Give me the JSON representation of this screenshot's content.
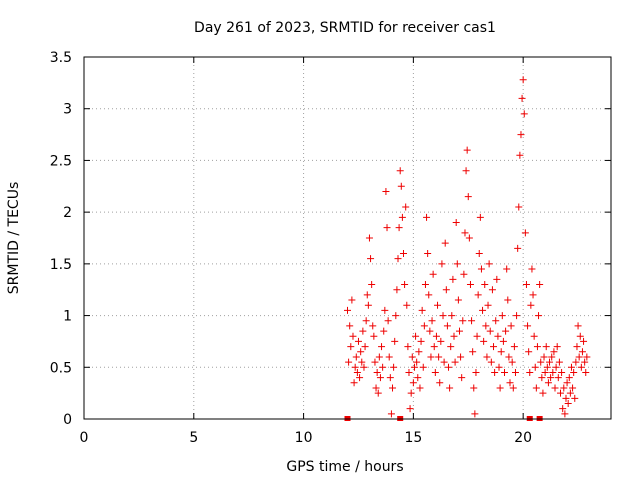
{
  "chart_data": {
    "type": "scatter",
    "title": "Day 261 of 2023, SRMTID for receiver cas1",
    "xlabel": "GPS time / hours",
    "ylabel": "SRMTID / TECUs",
    "xlim": [
      0,
      24
    ],
    "ylim": [
      0,
      3.5
    ],
    "xticks": [
      0,
      5,
      10,
      15,
      20
    ],
    "yticks": [
      0,
      0.5,
      1,
      1.5,
      2,
      2.5,
      3,
      3.5
    ],
    "xtick_labels": [
      "0",
      "5",
      "10",
      "15",
      "20"
    ],
    "ytick_labels": [
      "0",
      "0.5",
      "1",
      "1.5",
      "2",
      "2.5",
      "3",
      "3.5"
    ],
    "grid": true,
    "marker": "plus",
    "color": "#ee0000",
    "series": [
      {
        "name": "SRMTID",
        "points": [
          [
            12.0,
            1.05
          ],
          [
            12.05,
            0.55
          ],
          [
            12.1,
            0.9
          ],
          [
            12.15,
            0.7
          ],
          [
            12.2,
            1.15
          ],
          [
            12.25,
            0.8
          ],
          [
            12.3,
            0.35
          ],
          [
            12.35,
            0.5
          ],
          [
            12.4,
            0.6
          ],
          [
            12.45,
            0.45
          ],
          [
            12.5,
            0.75
          ],
          [
            12.55,
            0.4
          ],
          [
            12.6,
            0.65
          ],
          [
            12.65,
            0.55
          ],
          [
            12.7,
            0.85
          ],
          [
            12.75,
            0.5
          ],
          [
            12.8,
            0.7
          ],
          [
            12.85,
            0.95
          ],
          [
            12.9,
            1.2
          ],
          [
            12.95,
            1.1
          ],
          [
            13.0,
            1.75
          ],
          [
            13.05,
            1.55
          ],
          [
            13.1,
            1.3
          ],
          [
            13.15,
            0.9
          ],
          [
            13.2,
            0.8
          ],
          [
            13.25,
            0.55
          ],
          [
            13.3,
            0.3
          ],
          [
            13.35,
            0.45
          ],
          [
            13.4,
            0.25
          ],
          [
            13.45,
            0.6
          ],
          [
            13.5,
            0.4
          ],
          [
            13.55,
            0.7
          ],
          [
            13.6,
            0.5
          ],
          [
            13.65,
            0.85
          ],
          [
            13.7,
            1.05
          ],
          [
            13.75,
            2.2
          ],
          [
            13.8,
            1.85
          ],
          [
            13.85,
            0.95
          ],
          [
            13.9,
            0.6
          ],
          [
            13.95,
            0.4
          ],
          [
            14.0,
            0.05
          ],
          [
            14.05,
            0.3
          ],
          [
            14.1,
            0.5
          ],
          [
            14.15,
            0.75
          ],
          [
            14.2,
            1.0
          ],
          [
            14.25,
            1.25
          ],
          [
            14.3,
            1.55
          ],
          [
            14.35,
            1.85
          ],
          [
            14.4,
            2.4
          ],
          [
            14.45,
            2.25
          ],
          [
            14.5,
            1.95
          ],
          [
            14.55,
            1.6
          ],
          [
            14.6,
            1.3
          ],
          [
            14.65,
            2.05
          ],
          [
            14.7,
            1.1
          ],
          [
            14.75,
            0.7
          ],
          [
            14.8,
            0.45
          ],
          [
            14.85,
            0.1
          ],
          [
            14.9,
            0.25
          ],
          [
            14.95,
            0.6
          ],
          [
            15.0,
            0.35
          ],
          [
            15.05,
            0.5
          ],
          [
            15.1,
            0.8
          ],
          [
            15.15,
            0.55
          ],
          [
            15.2,
            0.4
          ],
          [
            15.25,
            0.65
          ],
          [
            15.3,
            0.3
          ],
          [
            15.35,
            0.75
          ],
          [
            15.4,
            1.05
          ],
          [
            15.45,
            0.5
          ],
          [
            15.5,
            0.9
          ],
          [
            15.55,
            1.3
          ],
          [
            15.6,
            1.95
          ],
          [
            15.65,
            1.6
          ],
          [
            15.7,
            1.2
          ],
          [
            15.75,
            0.85
          ],
          [
            15.8,
            0.6
          ],
          [
            15.85,
            0.95
          ],
          [
            15.9,
            1.4
          ],
          [
            15.95,
            0.7
          ],
          [
            16.0,
            0.45
          ],
          [
            16.05,
            0.8
          ],
          [
            16.1,
            1.1
          ],
          [
            16.15,
            0.6
          ],
          [
            16.2,
            0.35
          ],
          [
            16.25,
            0.75
          ],
          [
            16.3,
            1.5
          ],
          [
            16.35,
            1.0
          ],
          [
            16.4,
            0.55
          ],
          [
            16.45,
            1.7
          ],
          [
            16.5,
            1.25
          ],
          [
            16.55,
            0.9
          ],
          [
            16.6,
            0.5
          ],
          [
            16.65,
            0.3
          ],
          [
            16.7,
            0.7
          ],
          [
            16.75,
            1.0
          ],
          [
            16.8,
            1.35
          ],
          [
            16.85,
            0.8
          ],
          [
            16.9,
            0.55
          ],
          [
            16.95,
            1.9
          ],
          [
            17.0,
            1.5
          ],
          [
            17.05,
            1.15
          ],
          [
            17.1,
            0.85
          ],
          [
            17.15,
            0.6
          ],
          [
            17.2,
            0.4
          ],
          [
            17.25,
            0.95
          ],
          [
            17.3,
            1.4
          ],
          [
            17.35,
            1.8
          ],
          [
            17.4,
            2.4
          ],
          [
            17.45,
            2.6
          ],
          [
            17.5,
            2.15
          ],
          [
            17.55,
            1.75
          ],
          [
            17.6,
            1.3
          ],
          [
            17.65,
            0.95
          ],
          [
            17.7,
            0.65
          ],
          [
            17.75,
            0.3
          ],
          [
            17.8,
            0.05
          ],
          [
            17.85,
            0.45
          ],
          [
            17.9,
            0.8
          ],
          [
            17.95,
            1.2
          ],
          [
            18.0,
            1.6
          ],
          [
            18.05,
            1.95
          ],
          [
            18.1,
            1.45
          ],
          [
            18.15,
            1.05
          ],
          [
            18.2,
            0.75
          ],
          [
            18.25,
            1.3
          ],
          [
            18.3,
            0.9
          ],
          [
            18.35,
            0.6
          ],
          [
            18.4,
            1.1
          ],
          [
            18.45,
            1.5
          ],
          [
            18.5,
            0.85
          ],
          [
            18.55,
            0.55
          ],
          [
            18.6,
            1.25
          ],
          [
            18.65,
            0.7
          ],
          [
            18.7,
            0.45
          ],
          [
            18.75,
            0.95
          ],
          [
            18.8,
            1.35
          ],
          [
            18.85,
            0.8
          ],
          [
            18.9,
            0.5
          ],
          [
            18.95,
            0.3
          ],
          [
            19.0,
            0.65
          ],
          [
            19.05,
            1.0
          ],
          [
            19.1,
            0.75
          ],
          [
            19.15,
            0.45
          ],
          [
            19.2,
            0.85
          ],
          [
            19.25,
            1.45
          ],
          [
            19.3,
            1.15
          ],
          [
            19.35,
            0.6
          ],
          [
            19.4,
            0.35
          ],
          [
            19.45,
            0.9
          ],
          [
            19.5,
            0.55
          ],
          [
            19.55,
            0.3
          ],
          [
            19.6,
            0.7
          ],
          [
            19.65,
            0.45
          ],
          [
            19.7,
            1.0
          ],
          [
            19.75,
            1.65
          ],
          [
            19.8,
            2.05
          ],
          [
            19.85,
            2.55
          ],
          [
            19.9,
            2.75
          ],
          [
            19.95,
            3.1
          ],
          [
            20.0,
            3.28
          ],
          [
            20.05,
            2.95
          ],
          [
            20.1,
            1.8
          ],
          [
            20.15,
            1.3
          ],
          [
            20.2,
            0.9
          ],
          [
            20.25,
            0.65
          ],
          [
            20.3,
            0.45
          ],
          [
            20.35,
            1.1
          ],
          [
            20.4,
            1.45
          ],
          [
            20.45,
            1.2
          ],
          [
            20.5,
            0.8
          ],
          [
            20.55,
            0.5
          ],
          [
            20.6,
            0.3
          ],
          [
            20.65,
            0.7
          ],
          [
            20.7,
            1.0
          ],
          [
            20.75,
            1.3
          ],
          [
            20.8,
            0.55
          ],
          [
            20.85,
            0.4
          ],
          [
            20.9,
            0.25
          ],
          [
            20.95,
            0.6
          ],
          [
            21.0,
            0.45
          ],
          [
            21.05,
            0.7
          ],
          [
            21.1,
            0.5
          ],
          [
            21.15,
            0.35
          ],
          [
            21.2,
            0.55
          ],
          [
            21.25,
            0.4
          ],
          [
            21.3,
            0.6
          ],
          [
            21.35,
            0.45
          ],
          [
            21.4,
            0.65
          ],
          [
            21.45,
            0.3
          ],
          [
            21.5,
            0.5
          ],
          [
            21.55,
            0.7
          ],
          [
            21.6,
            0.4
          ],
          [
            21.65,
            0.55
          ],
          [
            21.7,
            0.25
          ],
          [
            21.75,
            0.45
          ],
          [
            21.8,
            0.1
          ],
          [
            21.85,
            0.3
          ],
          [
            21.9,
            0.05
          ],
          [
            21.95,
            0.2
          ],
          [
            22.0,
            0.35
          ],
          [
            22.05,
            0.15
          ],
          [
            22.1,
            0.4
          ],
          [
            22.15,
            0.25
          ],
          [
            22.2,
            0.5
          ],
          [
            22.25,
            0.3
          ],
          [
            22.3,
            0.45
          ],
          [
            22.35,
            0.2
          ],
          [
            22.4,
            0.55
          ],
          [
            22.45,
            0.7
          ],
          [
            22.5,
            0.9
          ],
          [
            22.55,
            0.6
          ],
          [
            22.6,
            0.8
          ],
          [
            22.65,
            0.5
          ],
          [
            22.7,
            0.65
          ],
          [
            22.75,
            0.75
          ],
          [
            22.8,
            0.55
          ],
          [
            22.85,
            0.45
          ],
          [
            22.9,
            0.6
          ]
        ]
      }
    ],
    "zero_markers": {
      "name": "zero-value markers",
      "x": [
        12.0,
        14.4,
        20.3,
        20.75
      ]
    }
  }
}
